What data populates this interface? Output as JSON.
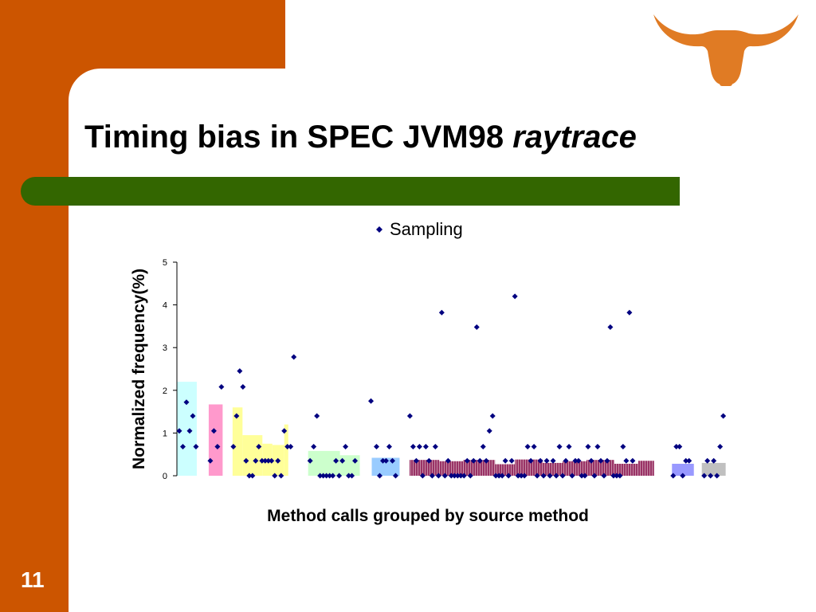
{
  "slide": {
    "title_main": "Timing bias in SPEC JVM98 ",
    "title_italic": "raytrace",
    "page_number": "11"
  },
  "colors": {
    "frame": "#cc5500",
    "title_bar": "#336600",
    "logo": "#e07b24",
    "marker": "#000080"
  },
  "logo_icon": "longhorn-logo-icon",
  "chart_data": {
    "type": "scatter",
    "title": "",
    "xlabel": "Method calls grouped by source method",
    "ylabel": "Normalized frequency(%)",
    "ylim": [
      0,
      5
    ],
    "yticks": [
      "0",
      "1",
      "2",
      "3",
      "4",
      "5"
    ],
    "grid": false,
    "legend": {
      "position": "top",
      "entries": [
        "Sampling"
      ]
    },
    "xlim": [
      0,
      135
    ],
    "groups": [
      {
        "color": "#ccffff",
        "bars": [
          {
            "x0": 0,
            "x1": 5,
            "value": 2.2
          }
        ]
      },
      {
        "color": "#ff99cc",
        "bars": [
          {
            "x0": 8,
            "x1": 11.5,
            "value": 1.67
          }
        ]
      },
      {
        "color": "#ffff99",
        "bars": [
          {
            "x0": 14,
            "x1": 16.5,
            "value": 1.6
          },
          {
            "x0": 16.5,
            "x1": 21.5,
            "value": 0.95
          },
          {
            "x0": 21.5,
            "x1": 24,
            "value": 0.75
          },
          {
            "x0": 24,
            "x1": 27,
            "value": 0.72
          },
          {
            "x0": 27,
            "x1": 28,
            "value": 1.2
          }
        ]
      },
      {
        "color": "#ccffcc",
        "bars": [
          {
            "x0": 33,
            "x1": 41,
            "value": 0.58
          },
          {
            "x0": 41,
            "x1": 46,
            "value": 0.48
          }
        ]
      },
      {
        "color": "#99ccff",
        "bars": [
          {
            "x0": 49,
            "x1": 56,
            "value": 0.42
          }
        ]
      },
      {
        "color": "#993366",
        "striped": true,
        "bars": [
          {
            "x0": 58.5,
            "x1": 66,
            "value": 0.37
          },
          {
            "x0": 66,
            "x1": 72,
            "value": 0.34
          },
          {
            "x0": 72,
            "x1": 80,
            "value": 0.37
          },
          {
            "x0": 80,
            "x1": 85,
            "value": 0.27
          },
          {
            "x0": 85,
            "x1": 92,
            "value": 0.38
          },
          {
            "x0": 92,
            "x1": 97,
            "value": 0.3
          },
          {
            "x0": 97,
            "x1": 103,
            "value": 0.34
          },
          {
            "x0": 103,
            "x1": 110,
            "value": 0.37
          },
          {
            "x0": 110,
            "x1": 116,
            "value": 0.28
          },
          {
            "x0": 116,
            "x1": 120,
            "value": 0.35
          }
        ]
      },
      {
        "color": "#9999ff",
        "bars": [
          {
            "x0": 124.5,
            "x1": 130,
            "value": 0.28
          }
        ]
      },
      {
        "color": "#c0c0c0",
        "bars": [
          {
            "x0": 132,
            "x1": 138,
            "value": 0.3
          }
        ]
      }
    ],
    "series": [
      {
        "name": "Sampling",
        "marker": "diamond",
        "points": [
          [
            0.6,
            1.05
          ],
          [
            1.5,
            0.68
          ],
          [
            2.4,
            1.72
          ],
          [
            3.2,
            1.05
          ],
          [
            4.0,
            1.4
          ],
          [
            4.8,
            0.68
          ],
          [
            8.4,
            0.35
          ],
          [
            9.3,
            1.05
          ],
          [
            10.2,
            0.68
          ],
          [
            11.2,
            2.08
          ],
          [
            14.2,
            0.68
          ],
          [
            15.0,
            1.4
          ],
          [
            15.8,
            2.45
          ],
          [
            16.6,
            2.08
          ],
          [
            17.4,
            0.35
          ],
          [
            18.2,
            0.0
          ],
          [
            19.0,
            0.0
          ],
          [
            19.8,
            0.35
          ],
          [
            20.6,
            0.68
          ],
          [
            21.4,
            0.35
          ],
          [
            22.2,
            0.35
          ],
          [
            23.0,
            0.35
          ],
          [
            23.8,
            0.35
          ],
          [
            24.6,
            0.0
          ],
          [
            25.4,
            0.35
          ],
          [
            26.2,
            0.0
          ],
          [
            27.0,
            1.05
          ],
          [
            27.8,
            0.68
          ],
          [
            28.6,
            0.68
          ],
          [
            29.4,
            2.78
          ],
          [
            33.5,
            0.35
          ],
          [
            34.4,
            0.68
          ],
          [
            35.2,
            1.4
          ],
          [
            36.0,
            0.0
          ],
          [
            36.8,
            0.0
          ],
          [
            37.6,
            0.0
          ],
          [
            38.4,
            0.0
          ],
          [
            39.2,
            0.0
          ],
          [
            40.0,
            0.35
          ],
          [
            40.8,
            0.0
          ],
          [
            41.6,
            0.35
          ],
          [
            42.4,
            0.68
          ],
          [
            43.2,
            0.0
          ],
          [
            44.0,
            0.0
          ],
          [
            44.8,
            0.35
          ],
          [
            48.8,
            1.75
          ],
          [
            50.2,
            0.68
          ],
          [
            51.0,
            0.0
          ],
          [
            51.8,
            0.35
          ],
          [
            52.6,
            0.35
          ],
          [
            53.4,
            0.68
          ],
          [
            54.2,
            0.35
          ],
          [
            55.0,
            0.0
          ],
          [
            58.6,
            1.4
          ],
          [
            59.4,
            0.68
          ],
          [
            60.2,
            0.35
          ],
          [
            61.0,
            0.68
          ],
          [
            61.8,
            0.0
          ],
          [
            62.6,
            0.68
          ],
          [
            63.4,
            0.35
          ],
          [
            64.2,
            0.0
          ],
          [
            65.0,
            0.68
          ],
          [
            65.8,
            0.0
          ],
          [
            66.6,
            3.82
          ],
          [
            67.4,
            0.0
          ],
          [
            68.2,
            0.35
          ],
          [
            69.0,
            0.0
          ],
          [
            69.8,
            0.0
          ],
          [
            70.6,
            0.0
          ],
          [
            71.4,
            0.0
          ],
          [
            72.2,
            0.0
          ],
          [
            73.0,
            0.35
          ],
          [
            73.8,
            0.0
          ],
          [
            74.6,
            0.35
          ],
          [
            75.4,
            3.48
          ],
          [
            76.2,
            0.35
          ],
          [
            77.0,
            0.68
          ],
          [
            77.8,
            0.35
          ],
          [
            78.6,
            1.05
          ],
          [
            79.4,
            1.4
          ],
          [
            80.2,
            0.0
          ],
          [
            81.0,
            0.0
          ],
          [
            81.8,
            0.0
          ],
          [
            82.6,
            0.35
          ],
          [
            83.4,
            0.0
          ],
          [
            84.2,
            0.35
          ],
          [
            85.0,
            4.2
          ],
          [
            85.8,
            0.0
          ],
          [
            86.6,
            0.0
          ],
          [
            87.4,
            0.0
          ],
          [
            88.2,
            0.68
          ],
          [
            89.0,
            0.35
          ],
          [
            89.8,
            0.68
          ],
          [
            90.6,
            0.0
          ],
          [
            91.4,
            0.35
          ],
          [
            92.2,
            0.0
          ],
          [
            93.0,
            0.35
          ],
          [
            93.8,
            0.0
          ],
          [
            94.6,
            0.35
          ],
          [
            95.4,
            0.0
          ],
          [
            96.2,
            0.68
          ],
          [
            97.0,
            0.0
          ],
          [
            97.8,
            0.35
          ],
          [
            98.6,
            0.68
          ],
          [
            99.4,
            0.0
          ],
          [
            100.2,
            0.35
          ],
          [
            101.0,
            0.35
          ],
          [
            101.8,
            0.0
          ],
          [
            102.6,
            0.0
          ],
          [
            103.4,
            0.68
          ],
          [
            104.2,
            0.35
          ],
          [
            105.0,
            0.0
          ],
          [
            105.8,
            0.68
          ],
          [
            106.6,
            0.35
          ],
          [
            107.4,
            0.0
          ],
          [
            108.2,
            0.35
          ],
          [
            109.0,
            3.48
          ],
          [
            109.8,
            0.0
          ],
          [
            110.6,
            0.0
          ],
          [
            111.4,
            0.0
          ],
          [
            112.2,
            0.68
          ],
          [
            113.0,
            0.35
          ],
          [
            113.8,
            3.82
          ],
          [
            114.6,
            0.35
          ],
          [
            124.8,
            0.0
          ],
          [
            125.6,
            0.68
          ],
          [
            126.4,
            0.68
          ],
          [
            127.2,
            0.0
          ],
          [
            128.0,
            0.35
          ],
          [
            128.8,
            0.35
          ],
          [
            132.6,
            0.0
          ],
          [
            133.4,
            0.35
          ],
          [
            134.2,
            0.0
          ],
          [
            135.0,
            0.35
          ],
          [
            135.8,
            0.0
          ],
          [
            136.6,
            0.68
          ],
          [
            137.4,
            1.4
          ]
        ]
      }
    ]
  }
}
